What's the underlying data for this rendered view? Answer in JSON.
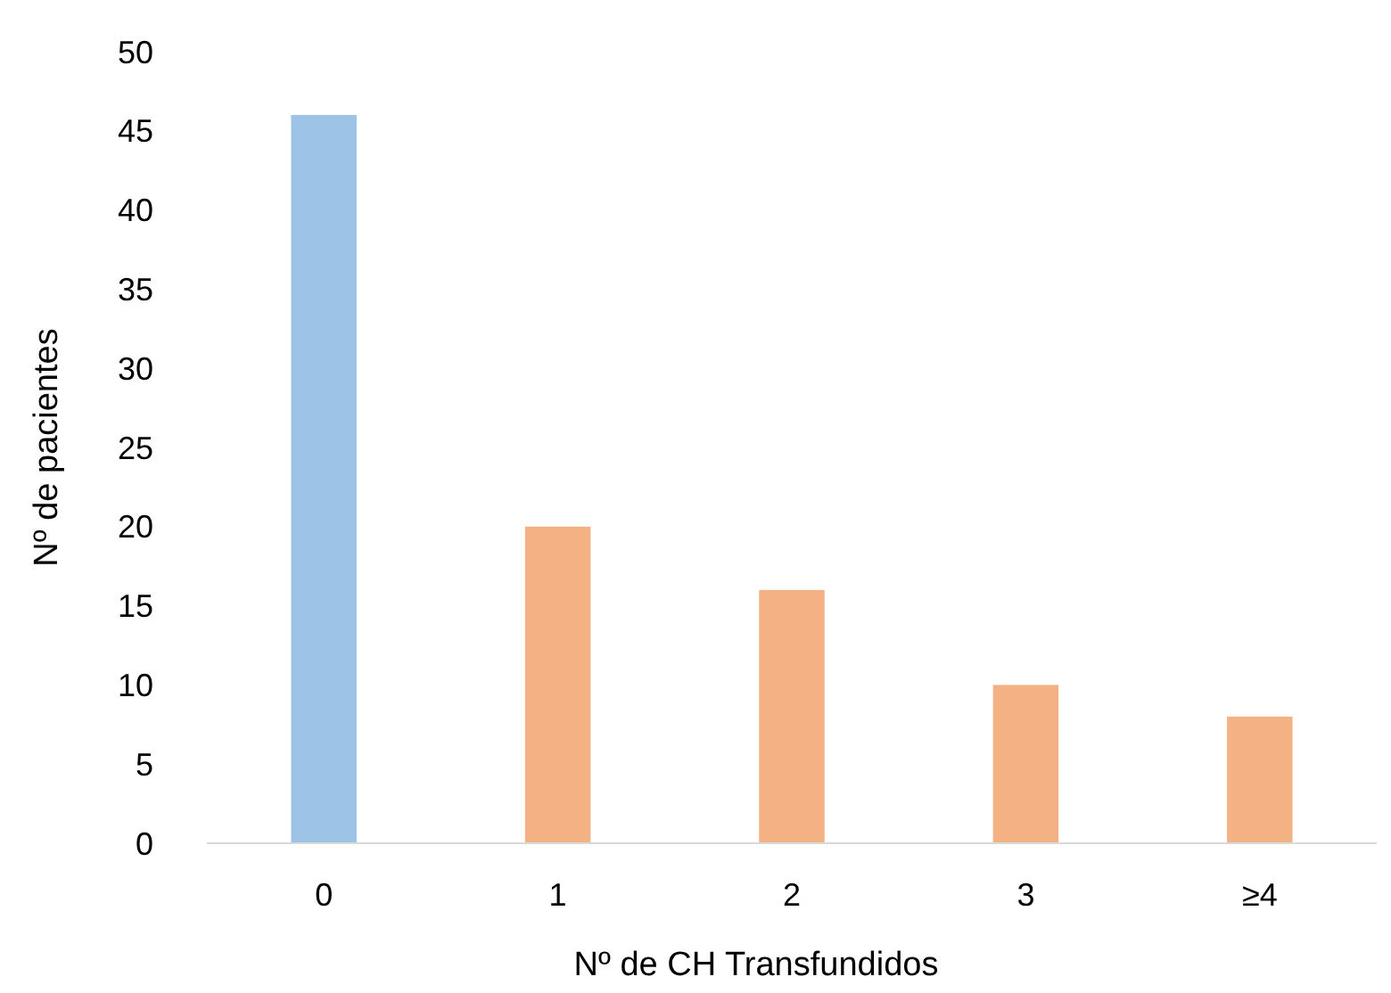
{
  "chart_data": {
    "type": "bar",
    "xlabel": "Nº de CH Transfundidos",
    "ylabel": "Nº de pacientes",
    "categories": [
      "0",
      "1",
      "2",
      "3",
      "≥4"
    ],
    "values": [
      46,
      20,
      16,
      10,
      8
    ],
    "colors": [
      "#9dc3e6",
      "#f4b183",
      "#f4b183",
      "#f4b183",
      "#f4b183"
    ],
    "ylim": [
      0,
      50
    ],
    "yticks": [
      0,
      5,
      10,
      15,
      20,
      25,
      30,
      35,
      40,
      45,
      50
    ],
    "grid": false
  }
}
